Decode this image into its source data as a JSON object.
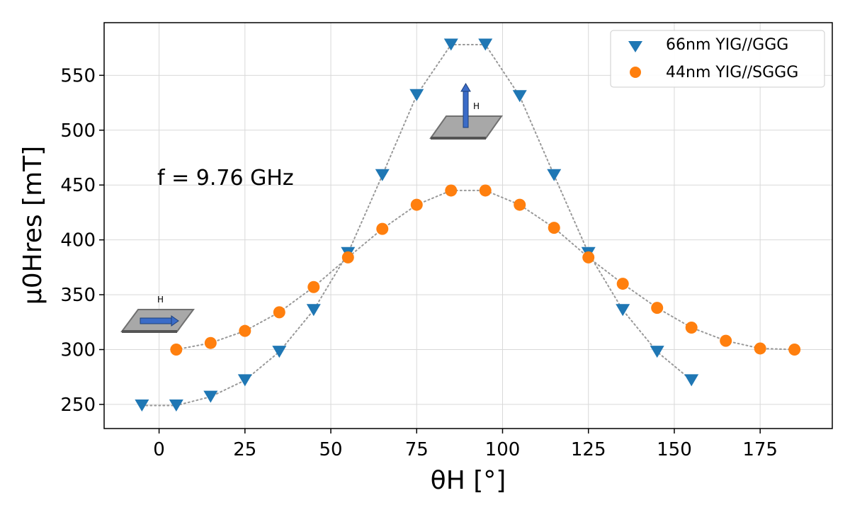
{
  "chart_data": {
    "type": "scatter",
    "x_label": "θH [°]",
    "y_label": "μ0Hres [mT]",
    "annotation": "f = 9.76 GHz",
    "inplane_label": "H",
    "outofplane_label": "H",
    "xlim": [
      -16,
      196
    ],
    "ylim": [
      228,
      598
    ],
    "xticks": [
      0,
      25,
      50,
      75,
      100,
      125,
      150,
      175
    ],
    "yticks": [
      250,
      300,
      350,
      400,
      450,
      500,
      550
    ],
    "grid": true,
    "legend_position": "top-right",
    "colors": {
      "series1": "#1f77b4",
      "series2": "#ff7f0e",
      "grid": "#d9d9d9",
      "connector": "#999999"
    },
    "series": [
      {
        "name": "66nm YIG//GGG",
        "marker": "triangle-down",
        "x": [
          -5,
          5,
          15,
          25,
          35,
          45,
          55,
          65,
          75,
          85,
          95,
          105,
          115,
          125,
          135,
          145,
          155
        ],
        "y": [
          249,
          249,
          257,
          272,
          298,
          336,
          388,
          459,
          532,
          578,
          578,
          531,
          459,
          388,
          336,
          298,
          272
        ]
      },
      {
        "name": "44nm YIG//SGGG",
        "marker": "circle",
        "x": [
          5,
          15,
          25,
          35,
          45,
          55,
          65,
          75,
          85,
          95,
          105,
          115,
          125,
          135,
          145,
          155,
          165,
          175,
          185
        ],
        "y": [
          300,
          306,
          317,
          334,
          357,
          384,
          410,
          432,
          445,
          445,
          432,
          411,
          384,
          360,
          338,
          320,
          308,
          301,
          300
        ]
      }
    ]
  }
}
